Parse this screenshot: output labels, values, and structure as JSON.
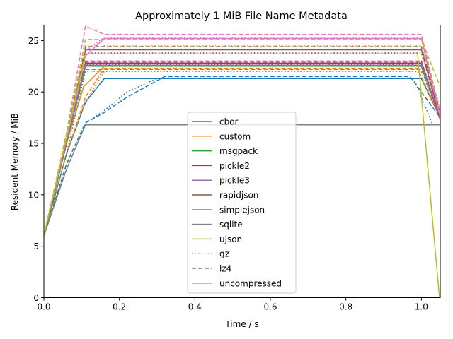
{
  "chart_data": {
    "type": "line",
    "title": "Approximately 1 MiB File Name Metadata",
    "xlabel": "Time / s",
    "ylabel": "Resident Memory / MiB",
    "xlim": [
      0,
      1.05
    ],
    "ylim": [
      0,
      26.5
    ],
    "xticks": [
      0,
      0.2,
      0.4,
      0.6,
      0.8,
      1.0
    ],
    "xtick_labels": [
      "0.0",
      "0.2",
      "0.4",
      "0.6",
      "0.8",
      "1.0"
    ],
    "yticks": [
      0,
      5,
      10,
      15,
      20,
      25
    ],
    "ytick_labels": [
      "0",
      "5",
      "10",
      "15",
      "20",
      "25"
    ],
    "grid": false,
    "legend_position": "center",
    "legend": [
      {
        "label": "cbor",
        "color": "#1f77b4",
        "style": "solid"
      },
      {
        "label": "custom",
        "color": "#ff7f0e",
        "style": "solid"
      },
      {
        "label": "msgpack",
        "color": "#2ca02c",
        "style": "solid"
      },
      {
        "label": "pickle2",
        "color": "#d62728",
        "style": "solid"
      },
      {
        "label": "pickle3",
        "color": "#9467bd",
        "style": "solid"
      },
      {
        "label": "rapidjson",
        "color": "#8c564b",
        "style": "solid"
      },
      {
        "label": "simplejson",
        "color": "#e377c2",
        "style": "solid"
      },
      {
        "label": "sqlite",
        "color": "#7f7f7f",
        "style": "solid"
      },
      {
        "label": "ujson",
        "color": "#bcbd22",
        "style": "solid"
      },
      {
        "label": "gz",
        "color": "#7f7f7f",
        "style": "dotted"
      },
      {
        "label": "lz4",
        "color": "#7f7f7f",
        "style": "dashed"
      },
      {
        "label": "uncompressed",
        "color": "#7f7f7f",
        "style": "solid"
      }
    ],
    "series": [
      {
        "color": "#1f77b4",
        "style": "solid",
        "points": [
          [
            0,
            6
          ],
          [
            0.06,
            14
          ],
          [
            0.11,
            19
          ],
          [
            0.16,
            21.3
          ],
          [
            1.0,
            21.3
          ],
          [
            1.05,
            17.5
          ]
        ]
      },
      {
        "color": "#1f77b4",
        "style": "dashed",
        "points": [
          [
            0,
            6
          ],
          [
            0.06,
            13
          ],
          [
            0.11,
            17
          ],
          [
            0.16,
            18
          ],
          [
            0.22,
            19.5
          ],
          [
            0.32,
            21.5
          ],
          [
            0.97,
            21.5
          ],
          [
            1.05,
            17.5
          ]
        ]
      },
      {
        "color": "#1f77b4",
        "style": "dotted",
        "points": [
          [
            0,
            6
          ],
          [
            0.06,
            13
          ],
          [
            0.11,
            17
          ],
          [
            0.16,
            18.2
          ],
          [
            0.22,
            20
          ],
          [
            0.3,
            21.3
          ],
          [
            0.98,
            21.3
          ],
          [
            1.03,
            16.8
          ]
        ]
      },
      {
        "color": "#ff7f0e",
        "style": "solid",
        "points": [
          [
            0,
            6
          ],
          [
            0.06,
            15
          ],
          [
            0.105,
            20.5
          ],
          [
            0.16,
            22.5
          ],
          [
            1.0,
            22.5
          ],
          [
            1.05,
            17.5
          ]
        ]
      },
      {
        "color": "#ff7f0e",
        "style": "dashed",
        "points": [
          [
            0,
            6
          ],
          [
            0.06,
            14
          ],
          [
            0.11,
            19.5
          ],
          [
            0.16,
            22.3
          ],
          [
            0.99,
            22.3
          ],
          [
            1.05,
            17.5
          ]
        ]
      },
      {
        "color": "#ff7f0e",
        "style": "dotted",
        "points": [
          [
            0,
            6
          ],
          [
            0.06,
            14
          ],
          [
            0.11,
            19
          ],
          [
            0.16,
            22
          ],
          [
            0.99,
            22
          ],
          [
            1.05,
            17.5
          ]
        ]
      },
      {
        "color": "#2ca02c",
        "style": "solid",
        "points": [
          [
            0,
            6
          ],
          [
            0.06,
            15
          ],
          [
            0.11,
            22.5
          ],
          [
            1.0,
            22.5
          ],
          [
            1.05,
            17.5
          ]
        ]
      },
      {
        "color": "#2ca02c",
        "style": "dashed",
        "points": [
          [
            0,
            6
          ],
          [
            0.06,
            15
          ],
          [
            0.11,
            22.2
          ],
          [
            1.0,
            22.2
          ],
          [
            1.05,
            17.5
          ]
        ]
      },
      {
        "color": "#2ca02c",
        "style": "dotted",
        "points": [
          [
            0,
            6
          ],
          [
            0.06,
            14
          ],
          [
            0.11,
            22
          ],
          [
            1.0,
            22
          ],
          [
            1.05,
            17.5
          ]
        ]
      },
      {
        "color": "#d62728",
        "style": "solid",
        "points": [
          [
            0,
            6
          ],
          [
            0.06,
            15
          ],
          [
            0.11,
            22.8
          ],
          [
            1.0,
            22.8
          ],
          [
            1.05,
            17.3
          ]
        ]
      },
      {
        "color": "#d62728",
        "style": "dashed",
        "points": [
          [
            0,
            6
          ],
          [
            0.06,
            15
          ],
          [
            0.11,
            23
          ],
          [
            1.0,
            23
          ],
          [
            1.05,
            17.5
          ]
        ]
      },
      {
        "color": "#d62728",
        "style": "dotted",
        "points": [
          [
            0,
            6
          ],
          [
            0.06,
            15
          ],
          [
            0.11,
            22.7
          ],
          [
            1.0,
            22.7
          ],
          [
            1.05,
            17.5
          ]
        ]
      },
      {
        "color": "#9467bd",
        "style": "solid",
        "points": [
          [
            0,
            6
          ],
          [
            0.06,
            15
          ],
          [
            0.11,
            22.6
          ],
          [
            1.0,
            22.6
          ],
          [
            1.05,
            17.5
          ]
        ]
      },
      {
        "color": "#9467bd",
        "style": "dashed",
        "points": [
          [
            0,
            6
          ],
          [
            0.06,
            15
          ],
          [
            0.11,
            22.9
          ],
          [
            1.0,
            22.9
          ],
          [
            1.05,
            17.5
          ]
        ]
      },
      {
        "color": "#8c564b",
        "style": "solid",
        "points": [
          [
            0,
            6
          ],
          [
            0.06,
            15.5
          ],
          [
            0.11,
            24.1
          ],
          [
            1.0,
            24.1
          ],
          [
            1.05,
            17.5
          ]
        ]
      },
      {
        "color": "#8c564b",
        "style": "dashed",
        "points": [
          [
            0,
            6
          ],
          [
            0.06,
            15.5
          ],
          [
            0.11,
            24.4
          ],
          [
            1.0,
            24.4
          ],
          [
            1.05,
            18
          ]
        ]
      },
      {
        "color": "#8c564b",
        "style": "dotted",
        "points": [
          [
            0,
            6
          ],
          [
            0.06,
            15.5
          ],
          [
            0.11,
            23.8
          ],
          [
            1.0,
            23.8
          ],
          [
            1.05,
            17.5
          ]
        ]
      },
      {
        "color": "#e377c2",
        "style": "solid",
        "points": [
          [
            0,
            6
          ],
          [
            0.06,
            15.5
          ],
          [
            0.11,
            23.5
          ],
          [
            0.16,
            25.2
          ],
          [
            1.0,
            25.2
          ],
          [
            1.05,
            17.5
          ]
        ]
      },
      {
        "color": "#e377c2",
        "style": "dashed",
        "points": [
          [
            0,
            6
          ],
          [
            0.06,
            16
          ],
          [
            0.11,
            26.4
          ],
          [
            0.16,
            25.6
          ],
          [
            1.0,
            25.6
          ],
          [
            1.05,
            18
          ]
        ]
      },
      {
        "color": "#e377c2",
        "style": "dotted",
        "points": [
          [
            0,
            6
          ],
          [
            0.06,
            16
          ],
          [
            0.11,
            24
          ],
          [
            0.16,
            25.3
          ],
          [
            1.0,
            25.3
          ],
          [
            1.05,
            17.5
          ]
        ]
      },
      {
        "color": "#7f7f7f",
        "style": "solid",
        "points": [
          [
            0,
            6
          ],
          [
            0.06,
            12.5
          ],
          [
            0.11,
            16.8
          ],
          [
            1.05,
            16.8
          ]
        ]
      },
      {
        "color": "#bcbd22",
        "style": "solid",
        "points": [
          [
            0,
            6
          ],
          [
            0.06,
            15.5
          ],
          [
            0.11,
            23.7
          ],
          [
            0.99,
            23.7
          ],
          [
            1.048,
            0
          ]
        ]
      },
      {
        "color": "#bcbd22",
        "style": "dashed",
        "points": [
          [
            0,
            6
          ],
          [
            0.06,
            16
          ],
          [
            0.11,
            25.1
          ],
          [
            1.0,
            25.1
          ],
          [
            1.05,
            20.5
          ]
        ]
      },
      {
        "color": "#bcbd22",
        "style": "dotted",
        "points": [
          [
            0,
            6
          ],
          [
            0.06,
            16
          ],
          [
            0.11,
            24.5
          ],
          [
            1.0,
            24.5
          ],
          [
            1.05,
            18.5
          ]
        ]
      }
    ]
  }
}
